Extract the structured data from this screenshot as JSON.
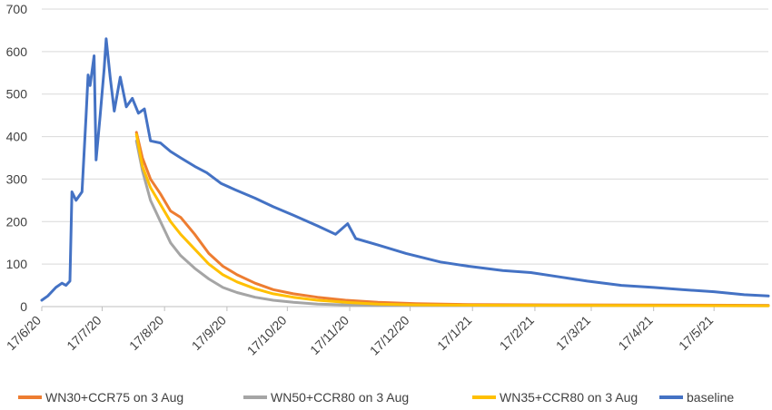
{
  "chart_data": {
    "type": "line",
    "title": "",
    "xlabel": "",
    "ylabel": "",
    "ylim": [
      0,
      700
    ],
    "yticks": [
      0,
      100,
      200,
      300,
      400,
      500,
      600,
      700
    ],
    "x_tick_labels": [
      "17/6/20",
      "17/7/20",
      "17/8/20",
      "17/9/20",
      "17/10/20",
      "17/11/20",
      "17/12/20",
      "17/1/21",
      "17/2/21",
      "17/3/21",
      "17/4/21",
      "17/5/21"
    ],
    "x_tick_dates": [
      "2020-06-17",
      "2020-07-17",
      "2020-08-17",
      "2020-09-17",
      "2020-10-17",
      "2020-11-17",
      "2020-12-17",
      "2021-01-17",
      "2021-02-17",
      "2021-03-17",
      "2021-04-17",
      "2021-05-17"
    ],
    "xlim": [
      "2020-06-17",
      "2021-06-13"
    ],
    "grid": "horizontal",
    "legend_position": "bottom",
    "series": [
      {
        "name": "WN30+CCR75 on 3 Aug",
        "color": "#ED7D31",
        "points": [
          [
            "2020-08-03",
            410
          ],
          [
            "2020-08-06",
            350
          ],
          [
            "2020-08-10",
            300
          ],
          [
            "2020-08-15",
            265
          ],
          [
            "2020-08-20",
            225
          ],
          [
            "2020-08-25",
            210
          ],
          [
            "2020-09-01",
            170
          ],
          [
            "2020-09-08",
            125
          ],
          [
            "2020-09-15",
            95
          ],
          [
            "2020-09-22",
            75
          ],
          [
            "2020-10-01",
            55
          ],
          [
            "2020-10-10",
            40
          ],
          [
            "2020-10-20",
            30
          ],
          [
            "2020-11-01",
            22
          ],
          [
            "2020-11-15",
            15
          ],
          [
            "2020-12-01",
            10
          ],
          [
            "2020-12-20",
            7
          ],
          [
            "2021-01-15",
            5
          ],
          [
            "2021-03-01",
            4
          ],
          [
            "2021-06-13",
            3
          ]
        ]
      },
      {
        "name": "WN50+CCR80 on 3 Aug",
        "color": "#A5A5A5",
        "points": [
          [
            "2020-08-03",
            390
          ],
          [
            "2020-08-06",
            320
          ],
          [
            "2020-08-10",
            250
          ],
          [
            "2020-08-15",
            200
          ],
          [
            "2020-08-20",
            150
          ],
          [
            "2020-08-25",
            120
          ],
          [
            "2020-09-01",
            90
          ],
          [
            "2020-09-08",
            65
          ],
          [
            "2020-09-15",
            45
          ],
          [
            "2020-09-22",
            33
          ],
          [
            "2020-10-01",
            22
          ],
          [
            "2020-10-10",
            15
          ],
          [
            "2020-10-20",
            10
          ],
          [
            "2020-11-01",
            6
          ],
          [
            "2020-11-15",
            4
          ],
          [
            "2020-12-01",
            3
          ],
          [
            "2021-06-13",
            2
          ]
        ]
      },
      {
        "name": "WN35+CCR80 on 3 Aug",
        "color": "#FFC000",
        "points": [
          [
            "2020-08-03",
            405
          ],
          [
            "2020-08-06",
            330
          ],
          [
            "2020-08-10",
            280
          ],
          [
            "2020-08-15",
            240
          ],
          [
            "2020-08-20",
            200
          ],
          [
            "2020-08-25",
            170
          ],
          [
            "2020-09-01",
            135
          ],
          [
            "2020-09-08",
            100
          ],
          [
            "2020-09-15",
            75
          ],
          [
            "2020-09-22",
            58
          ],
          [
            "2020-10-01",
            42
          ],
          [
            "2020-10-10",
            30
          ],
          [
            "2020-10-20",
            22
          ],
          [
            "2020-11-01",
            15
          ],
          [
            "2020-11-15",
            10
          ],
          [
            "2020-12-01",
            6
          ],
          [
            "2020-12-20",
            4
          ],
          [
            "2021-02-01",
            3
          ],
          [
            "2021-06-13",
            2
          ]
        ]
      },
      {
        "name": "baseline",
        "color": "#4472C4",
        "points": [
          [
            "2020-06-17",
            15
          ],
          [
            "2020-06-20",
            25
          ],
          [
            "2020-06-24",
            45
          ],
          [
            "2020-06-27",
            55
          ],
          [
            "2020-06-29",
            50
          ],
          [
            "2020-07-01",
            60
          ],
          [
            "2020-07-02",
            270
          ],
          [
            "2020-07-04",
            250
          ],
          [
            "2020-07-07",
            270
          ],
          [
            "2020-07-09",
            450
          ],
          [
            "2020-07-10",
            545
          ],
          [
            "2020-07-11",
            520
          ],
          [
            "2020-07-13",
            590
          ],
          [
            "2020-07-14",
            345
          ],
          [
            "2020-07-16",
            450
          ],
          [
            "2020-07-18",
            560
          ],
          [
            "2020-07-19",
            630
          ],
          [
            "2020-07-21",
            540
          ],
          [
            "2020-07-23",
            460
          ],
          [
            "2020-07-26",
            540
          ],
          [
            "2020-07-29",
            470
          ],
          [
            "2020-08-01",
            490
          ],
          [
            "2020-08-04",
            455
          ],
          [
            "2020-08-07",
            465
          ],
          [
            "2020-08-10",
            390
          ],
          [
            "2020-08-15",
            385
          ],
          [
            "2020-08-20",
            365
          ],
          [
            "2020-08-25",
            350
          ],
          [
            "2020-09-01",
            330
          ],
          [
            "2020-09-07",
            315
          ],
          [
            "2020-09-14",
            290
          ],
          [
            "2020-09-21",
            275
          ],
          [
            "2020-10-01",
            255
          ],
          [
            "2020-10-10",
            235
          ],
          [
            "2020-10-20",
            215
          ],
          [
            "2020-11-01",
            190
          ],
          [
            "2020-11-10",
            170
          ],
          [
            "2020-11-16",
            195
          ],
          [
            "2020-11-20",
            160
          ],
          [
            "2020-12-01",
            145
          ],
          [
            "2020-12-15",
            125
          ],
          [
            "2021-01-01",
            105
          ],
          [
            "2021-01-15",
            95
          ],
          [
            "2021-02-01",
            85
          ],
          [
            "2021-02-15",
            80
          ],
          [
            "2021-03-01",
            70
          ],
          [
            "2021-03-15",
            60
          ],
          [
            "2021-04-01",
            50
          ],
          [
            "2021-04-17",
            45
          ],
          [
            "2021-05-01",
            40
          ],
          [
            "2021-05-17",
            35
          ],
          [
            "2021-06-01",
            28
          ],
          [
            "2021-06-13",
            25
          ]
        ]
      }
    ]
  }
}
